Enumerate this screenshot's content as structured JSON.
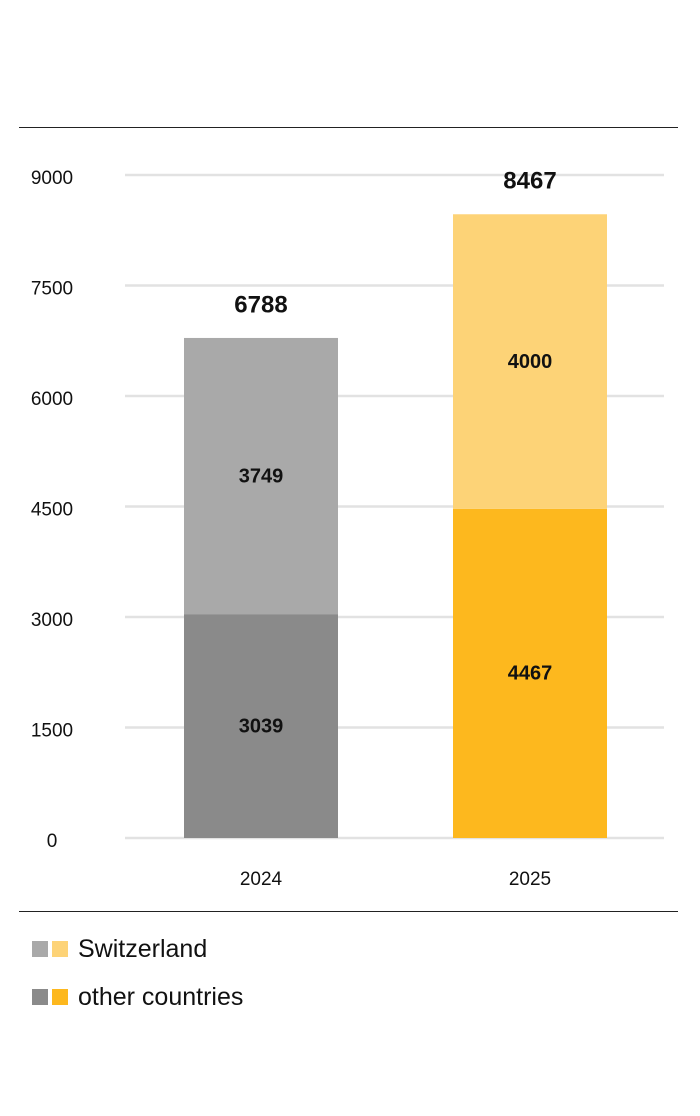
{
  "chart_data": {
    "type": "bar",
    "stacked": true,
    "categories": [
      "2024",
      "2025"
    ],
    "series": [
      {
        "name": "other countries",
        "values": [
          3039,
          4467
        ],
        "colors": [
          "#8a8a8a",
          "#fdb81e"
        ]
      },
      {
        "name": "Switzerland",
        "values": [
          3749,
          4000
        ],
        "colors": [
          "#a9a9a9",
          "#fdd377"
        ]
      }
    ],
    "totals": [
      6788,
      8467
    ],
    "yticks": [
      "0",
      "1500",
      "3000",
      "4500",
      "6000",
      "7500",
      "9000"
    ],
    "ylim": [
      0,
      9000
    ],
    "grid": true,
    "legend_position": "bottom-left"
  },
  "legend": [
    {
      "label": "Switzerland",
      "colors": [
        "#a9a9a9",
        "#fdd377"
      ]
    },
    {
      "label": "other countries",
      "colors": [
        "#8a8a8a",
        "#fdb81e"
      ]
    }
  ]
}
